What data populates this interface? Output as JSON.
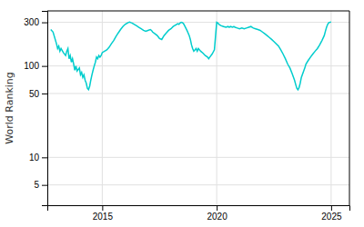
{
  "chart_data": {
    "type": "line",
    "ylabel": "World Ranking",
    "log": "y",
    "grid": true,
    "color": "#00CDCD",
    "xlim": [
      2012.6,
      2025.8
    ],
    "ylim": [
      3,
      400
    ],
    "xticks": [
      2015,
      2020,
      2025
    ],
    "yticks": [
      5,
      10,
      50,
      100,
      300
    ],
    "x": [
      2012.75,
      2012.85,
      2013.0,
      2013.05,
      2013.1,
      2013.15,
      2013.2,
      2013.3,
      2013.4,
      2013.45,
      2013.5,
      2013.55,
      2013.6,
      2013.65,
      2013.7,
      2013.75,
      2013.8,
      2013.85,
      2013.9,
      2014.0,
      2014.05,
      2014.1,
      2014.15,
      2014.2,
      2014.25,
      2014.3,
      2014.35,
      2014.4,
      2014.45,
      2014.5,
      2014.55,
      2014.6,
      2014.65,
      2014.7,
      2014.75,
      2014.8,
      2014.85,
      2014.9,
      2014.95,
      2015.0,
      2015.1,
      2015.2,
      2015.3,
      2015.4,
      2015.5,
      2015.6,
      2015.7,
      2015.8,
      2015.9,
      2016.0,
      2016.1,
      2016.15,
      2016.2,
      2016.25,
      2016.3,
      2016.35,
      2016.4,
      2016.5,
      2016.6,
      2016.7,
      2016.8,
      2016.9,
      2017.0,
      2017.1,
      2017.15,
      2017.2,
      2017.3,
      2017.4,
      2017.5,
      2017.6,
      2017.7,
      2017.8,
      2017.9,
      2018.0,
      2018.1,
      2018.2,
      2018.3,
      2018.35,
      2018.4,
      2018.45,
      2018.5,
      2018.55,
      2018.6,
      2018.65,
      2018.7,
      2018.75,
      2018.8,
      2018.85,
      2018.9,
      2018.95,
      2019.0,
      2019.1,
      2019.15,
      2019.2,
      2019.3,
      2019.4,
      2019.5,
      2019.6,
      2019.65,
      2019.7,
      2019.8,
      2019.9,
      2020.0,
      2020.05,
      2020.1,
      2020.2,
      2020.3,
      2020.4,
      2020.5,
      2020.55,
      2020.6,
      2020.7,
      2020.75,
      2020.8,
      2020.9,
      2021.0,
      2021.1,
      2021.2,
      2021.3,
      2021.4,
      2021.5,
      2021.55,
      2021.6,
      2021.7,
      2021.8,
      2021.9,
      2022.0,
      2022.1,
      2022.2,
      2022.3,
      2022.4,
      2022.5,
      2022.6,
      2022.7,
      2022.8,
      2022.9,
      2023.0,
      2023.1,
      2023.2,
      2023.3,
      2023.4,
      2023.45,
      2023.5,
      2023.55,
      2023.6,
      2023.65,
      2023.7,
      2023.8,
      2023.85,
      2023.9,
      2024.0,
      2024.1,
      2024.2,
      2024.3,
      2024.4,
      2024.5,
      2024.6,
      2024.7,
      2024.75,
      2024.8,
      2024.85,
      2024.9,
      2025.0
    ],
    "values": [
      250,
      235,
      175,
      155,
      165,
      145,
      155,
      140,
      130,
      145,
      155,
      120,
      130,
      110,
      120,
      105,
      90,
      100,
      88,
      95,
      80,
      85,
      75,
      80,
      70,
      65,
      57,
      55,
      60,
      70,
      80,
      90,
      100,
      110,
      125,
      120,
      130,
      125,
      130,
      140,
      145,
      150,
      160,
      175,
      190,
      210,
      230,
      250,
      270,
      285,
      295,
      300,
      302,
      298,
      295,
      290,
      285,
      275,
      265,
      255,
      245,
      240,
      245,
      250,
      245,
      235,
      225,
      215,
      200,
      195,
      215,
      230,
      245,
      255,
      270,
      280,
      290,
      285,
      295,
      300,
      298,
      290,
      275,
      260,
      245,
      230,
      215,
      195,
      170,
      155,
      145,
      155,
      145,
      155,
      145,
      138,
      130,
      125,
      120,
      125,
      135,
      150,
      300,
      295,
      285,
      275,
      270,
      265,
      270,
      265,
      270,
      265,
      270,
      265,
      260,
      255,
      260,
      255,
      260,
      265,
      270,
      265,
      260,
      255,
      250,
      245,
      235,
      225,
      215,
      205,
      195,
      185,
      175,
      165,
      150,
      135,
      120,
      105,
      95,
      82,
      70,
      63,
      57,
      55,
      58,
      65,
      75,
      88,
      95,
      105,
      115,
      125,
      135,
      145,
      155,
      170,
      190,
      215,
      240,
      265,
      285,
      298,
      302
    ]
  }
}
